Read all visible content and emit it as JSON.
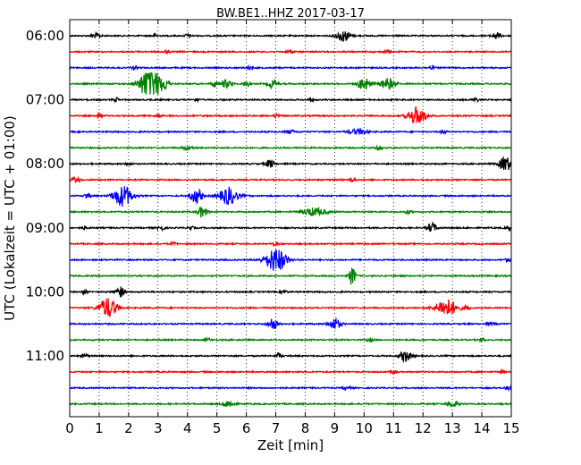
{
  "chart_data": {
    "type": "line",
    "title": "BW.BE1..HHZ 2017-03-17",
    "xlabel": "Zeit  [min]",
    "ylabel": "UTC (Lokalzeit = UTC + 01:00)",
    "xlim": [
      0,
      15
    ],
    "x_ticks": [
      "0",
      "1",
      "2",
      "3",
      "4",
      "5",
      "6",
      "7",
      "8",
      "9",
      "10",
      "11",
      "12",
      "13",
      "14",
      "15"
    ],
    "y_ticks": [
      {
        "row": 0,
        "label": "06:00"
      },
      {
        "row": 4,
        "label": "07:00"
      },
      {
        "row": 8,
        "label": "08:00"
      },
      {
        "row": 12,
        "label": "09:00"
      },
      {
        "row": 16,
        "label": "10:00"
      },
      {
        "row": 20,
        "label": "11:00"
      }
    ],
    "trace_colors": [
      "#000000",
      "#ff0000",
      "#0000ff",
      "#008000"
    ],
    "grid": "vertical dotted",
    "rows": [
      {
        "bursts": [
          [
            0.9,
            0.15,
            0.4
          ],
          [
            2.9,
            0.1,
            0.3
          ],
          [
            4.0,
            0.1,
            0.3
          ],
          [
            9.3,
            0.25,
            1.0
          ],
          [
            14.5,
            0.15,
            0.6
          ]
        ]
      },
      {
        "bursts": [
          [
            3.3,
            0.1,
            0.3
          ],
          [
            7.5,
            0.1,
            0.3
          ],
          [
            10.8,
            0.1,
            0.3
          ]
        ]
      },
      {
        "bursts": [
          [
            2.2,
            0.1,
            0.3
          ],
          [
            6.1,
            0.1,
            0.3
          ],
          [
            12.3,
            0.1,
            0.3
          ]
        ]
      },
      {
        "bursts": [
          [
            2.6,
            0.25,
            2.0
          ],
          [
            2.9,
            0.3,
            2.2
          ],
          [
            3.3,
            0.1,
            0.6
          ],
          [
            4.9,
            0.1,
            0.5
          ],
          [
            5.3,
            0.2,
            0.7
          ],
          [
            6.0,
            0.1,
            0.5
          ],
          [
            6.9,
            0.15,
            0.8
          ],
          [
            10.0,
            0.2,
            1.2
          ],
          [
            10.8,
            0.25,
            1.0
          ]
        ]
      },
      {
        "bursts": [
          [
            1.6,
            0.1,
            0.3
          ],
          [
            4.3,
            0.1,
            0.3
          ],
          [
            8.2,
            0.1,
            0.3
          ],
          [
            13.8,
            0.1,
            0.3
          ]
        ]
      },
      {
        "bursts": [
          [
            1.0,
            0.08,
            0.6
          ],
          [
            3.0,
            0.1,
            0.3
          ],
          [
            7.0,
            0.1,
            0.3
          ],
          [
            11.8,
            0.3,
            1.6
          ]
        ]
      },
      {
        "bursts": [
          [
            7.5,
            0.15,
            0.3
          ],
          [
            9.8,
            0.3,
            0.5
          ],
          [
            12.7,
            0.1,
            0.3
          ]
        ]
      },
      {
        "bursts": [
          [
            4.0,
            0.2,
            0.3
          ],
          [
            10.5,
            0.1,
            0.3
          ]
        ]
      },
      {
        "bursts": [
          [
            2.0,
            0.1,
            0.3
          ],
          [
            6.8,
            0.15,
            0.7
          ],
          [
            14.8,
            0.2,
            1.4
          ]
        ]
      },
      {
        "bursts": [
          [
            0.2,
            0.15,
            0.6
          ],
          [
            9.6,
            0.1,
            0.4
          ]
        ]
      },
      {
        "bursts": [
          [
            0.6,
            0.1,
            0.5
          ],
          [
            1.8,
            0.3,
            2.0
          ],
          [
            4.3,
            0.2,
            1.3
          ],
          [
            5.4,
            0.3,
            1.6
          ]
        ]
      },
      {
        "bursts": [
          [
            4.5,
            0.15,
            1.0
          ],
          [
            8.3,
            0.4,
            0.7
          ],
          [
            11.5,
            0.1,
            0.3
          ]
        ]
      },
      {
        "bursts": [
          [
            0.5,
            0.1,
            0.3
          ],
          [
            3.1,
            0.1,
            0.5
          ],
          [
            4.1,
            0.1,
            0.3
          ],
          [
            12.3,
            0.15,
            0.9
          ],
          [
            14.9,
            0.1,
            0.4
          ]
        ]
      },
      {
        "bursts": [
          [
            3.5,
            0.1,
            0.3
          ],
          [
            7.0,
            0.1,
            0.3
          ]
        ]
      },
      {
        "bursts": [
          [
            7.0,
            0.35,
            2.2
          ],
          [
            14.9,
            0.1,
            0.3
          ]
        ]
      },
      {
        "bursts": [
          [
            9.6,
            0.1,
            1.8
          ]
        ]
      },
      {
        "bursts": [
          [
            0.5,
            0.1,
            0.3
          ],
          [
            1.7,
            0.15,
            1.0
          ],
          [
            7.3,
            0.1,
            0.3
          ]
        ]
      },
      {
        "bursts": [
          [
            1.3,
            0.3,
            1.8
          ],
          [
            12.8,
            0.35,
            1.6
          ],
          [
            13.5,
            0.1,
            0.4
          ]
        ]
      },
      {
        "bursts": [
          [
            6.9,
            0.15,
            1.1
          ],
          [
            9.0,
            0.2,
            1.0
          ],
          [
            14.3,
            0.1,
            0.3
          ]
        ]
      },
      {
        "bursts": [
          [
            4.7,
            0.1,
            0.3
          ],
          [
            10.2,
            0.1,
            0.3
          ],
          [
            14.0,
            0.1,
            0.3
          ]
        ]
      },
      {
        "bursts": [
          [
            0.5,
            0.1,
            0.3
          ],
          [
            7.1,
            0.1,
            0.5
          ],
          [
            11.4,
            0.2,
            1.0
          ]
        ]
      },
      {
        "bursts": [
          [
            11.0,
            0.1,
            0.3
          ],
          [
            14.7,
            0.1,
            0.3
          ]
        ]
      },
      {
        "bursts": [
          [
            9.4,
            0.1,
            0.3
          ],
          [
            14.9,
            0.1,
            0.3
          ]
        ]
      },
      {
        "bursts": [
          [
            5.4,
            0.2,
            0.6
          ],
          [
            13.0,
            0.2,
            0.5
          ]
        ]
      }
    ]
  }
}
